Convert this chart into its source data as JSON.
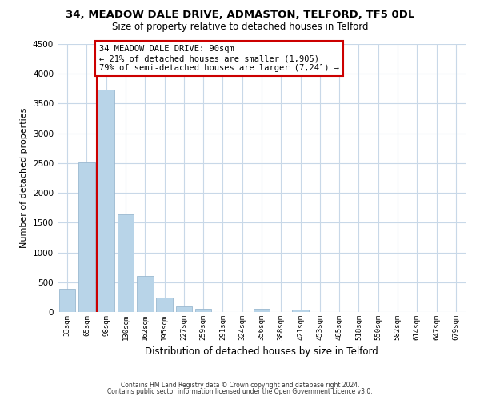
{
  "title": "34, MEADOW DALE DRIVE, ADMASTON, TELFORD, TF5 0DL",
  "subtitle": "Size of property relative to detached houses in Telford",
  "xlabel": "Distribution of detached houses by size in Telford",
  "ylabel": "Number of detached properties",
  "bar_labels": [
    "33sqm",
    "65sqm",
    "98sqm",
    "130sqm",
    "162sqm",
    "195sqm",
    "227sqm",
    "259sqm",
    "291sqm",
    "324sqm",
    "356sqm",
    "388sqm",
    "421sqm",
    "453sqm",
    "485sqm",
    "518sqm",
    "550sqm",
    "582sqm",
    "614sqm",
    "647sqm",
    "679sqm"
  ],
  "bar_values": [
    390,
    2510,
    3730,
    1640,
    600,
    245,
    100,
    60,
    0,
    0,
    60,
    0,
    40,
    0,
    0,
    0,
    0,
    0,
    0,
    0,
    0
  ],
  "bar_color": "#b8d4e8",
  "bar_edge_color": "#9ab8d0",
  "annotation_title": "34 MEADOW DALE DRIVE: 90sqm",
  "annotation_line1": "← 21% of detached houses are smaller (1,905)",
  "annotation_line2": "79% of semi-detached houses are larger (7,241) →",
  "marker_line_color": "#cc0000",
  "ylim": [
    0,
    4500
  ],
  "yticks": [
    0,
    500,
    1000,
    1500,
    2000,
    2500,
    3000,
    3500,
    4000,
    4500
  ],
  "footer1": "Contains HM Land Registry data © Crown copyright and database right 2024.",
  "footer2": "Contains public sector information licensed under the Open Government Licence v3.0.",
  "bg_color": "#ffffff",
  "grid_color": "#c8d8e8",
  "annotation_box_color": "#ffffff",
  "annotation_box_edge": "#cc0000"
}
